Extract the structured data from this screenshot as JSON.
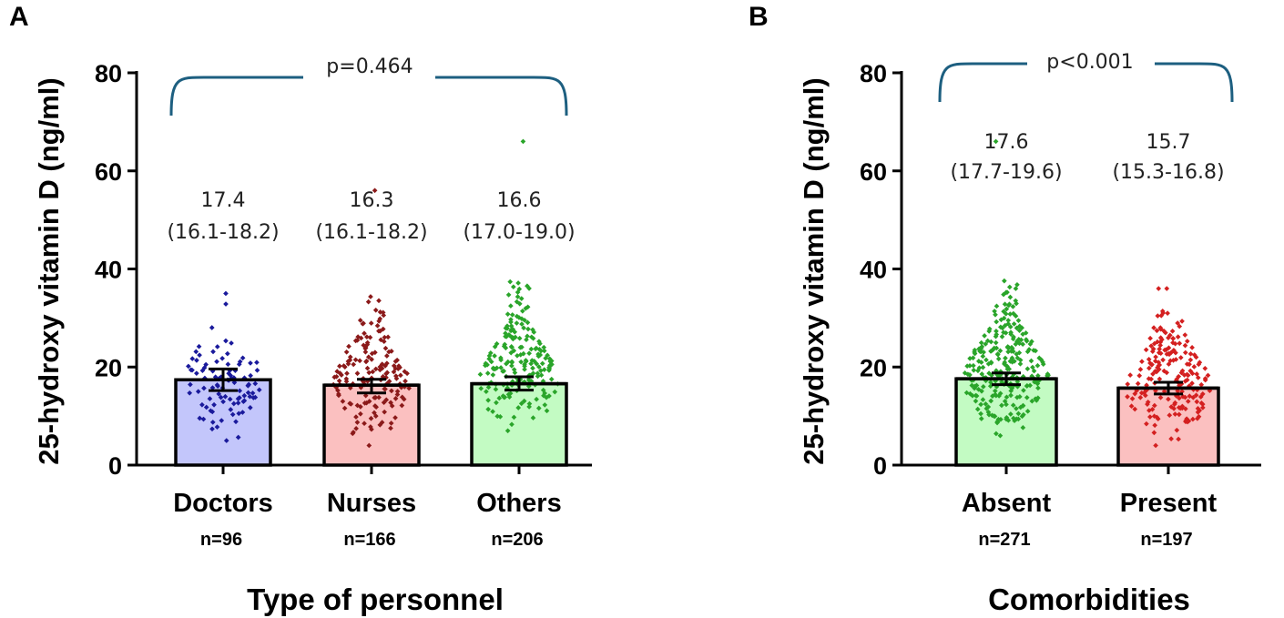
{
  "chart_data": [
    {
      "type": "bar",
      "panel": "A",
      "title": "",
      "xlabel": "Type of personnel",
      "ylabel": "25-hydroxy vitamin D (ng/ml)",
      "ylim": [
        0,
        80
      ],
      "yticks": [
        "0",
        "20",
        "40",
        "60",
        "80"
      ],
      "categories": [
        "Doctors",
        "Nurses",
        "Others"
      ],
      "n_labels": [
        "n=96",
        "n=166",
        "n=206"
      ],
      "values": [
        17.4,
        16.3,
        16.6
      ],
      "ci": [
        [
          16.1,
          18.2
        ],
        [
          16.1,
          18.2
        ],
        [
          17.0,
          19.0
        ]
      ],
      "error_bars": [
        [
          15.2,
          19.6
        ],
        [
          14.7,
          17.5
        ],
        [
          15.3,
          18.0
        ]
      ],
      "value_labels": [
        "17.4",
        "16.3",
        "16.6"
      ],
      "ci_labels": [
        "(16.1-18.2)",
        "(16.1-18.2)",
        "(17.0-19.0)"
      ],
      "bar_colors": [
        "#c3c6fb",
        "#fbc0c0",
        "#c3fbc3"
      ],
      "dot_colors": [
        "#1a1a9c",
        "#8b1a1a",
        "#2aa52a"
      ],
      "point_counts": [
        96,
        166,
        206
      ],
      "point_ranges": [
        [
          5,
          35
        ],
        [
          4,
          56
        ],
        [
          7,
          66
        ]
      ],
      "bracket_label": "p=0.464",
      "bracket_color": "#1d5f80"
    },
    {
      "type": "bar",
      "panel": "B",
      "title": "",
      "xlabel": "Comorbidities",
      "ylabel": "25-hydroxy vitamin D (ng/ml)",
      "ylim": [
        0,
        80
      ],
      "yticks": [
        "0",
        "20",
        "40",
        "60",
        "80"
      ],
      "categories": [
        "Absent",
        "Present"
      ],
      "n_labels": [
        "n=271",
        "n=197"
      ],
      "values": [
        17.6,
        15.7
      ],
      "ci": [
        [
          17.7,
          19.6
        ],
        [
          15.3,
          16.8
        ]
      ],
      "error_bars": [
        [
          16.4,
          18.8
        ],
        [
          14.5,
          16.9
        ]
      ],
      "value_labels": [
        "17.6",
        "15.7"
      ],
      "ci_labels": [
        "(17.7-19.6)",
        "(15.3-16.8)"
      ],
      "bar_colors": [
        "#c3fbc3",
        "#fbc0c0"
      ],
      "dot_colors": [
        "#2aa52a",
        "#d42020"
      ],
      "point_counts": [
        271,
        197
      ],
      "point_ranges": [
        [
          6,
          66
        ],
        [
          4,
          36
        ]
      ],
      "bracket_label": "p<0.001",
      "bracket_color": "#1d5f80"
    }
  ]
}
